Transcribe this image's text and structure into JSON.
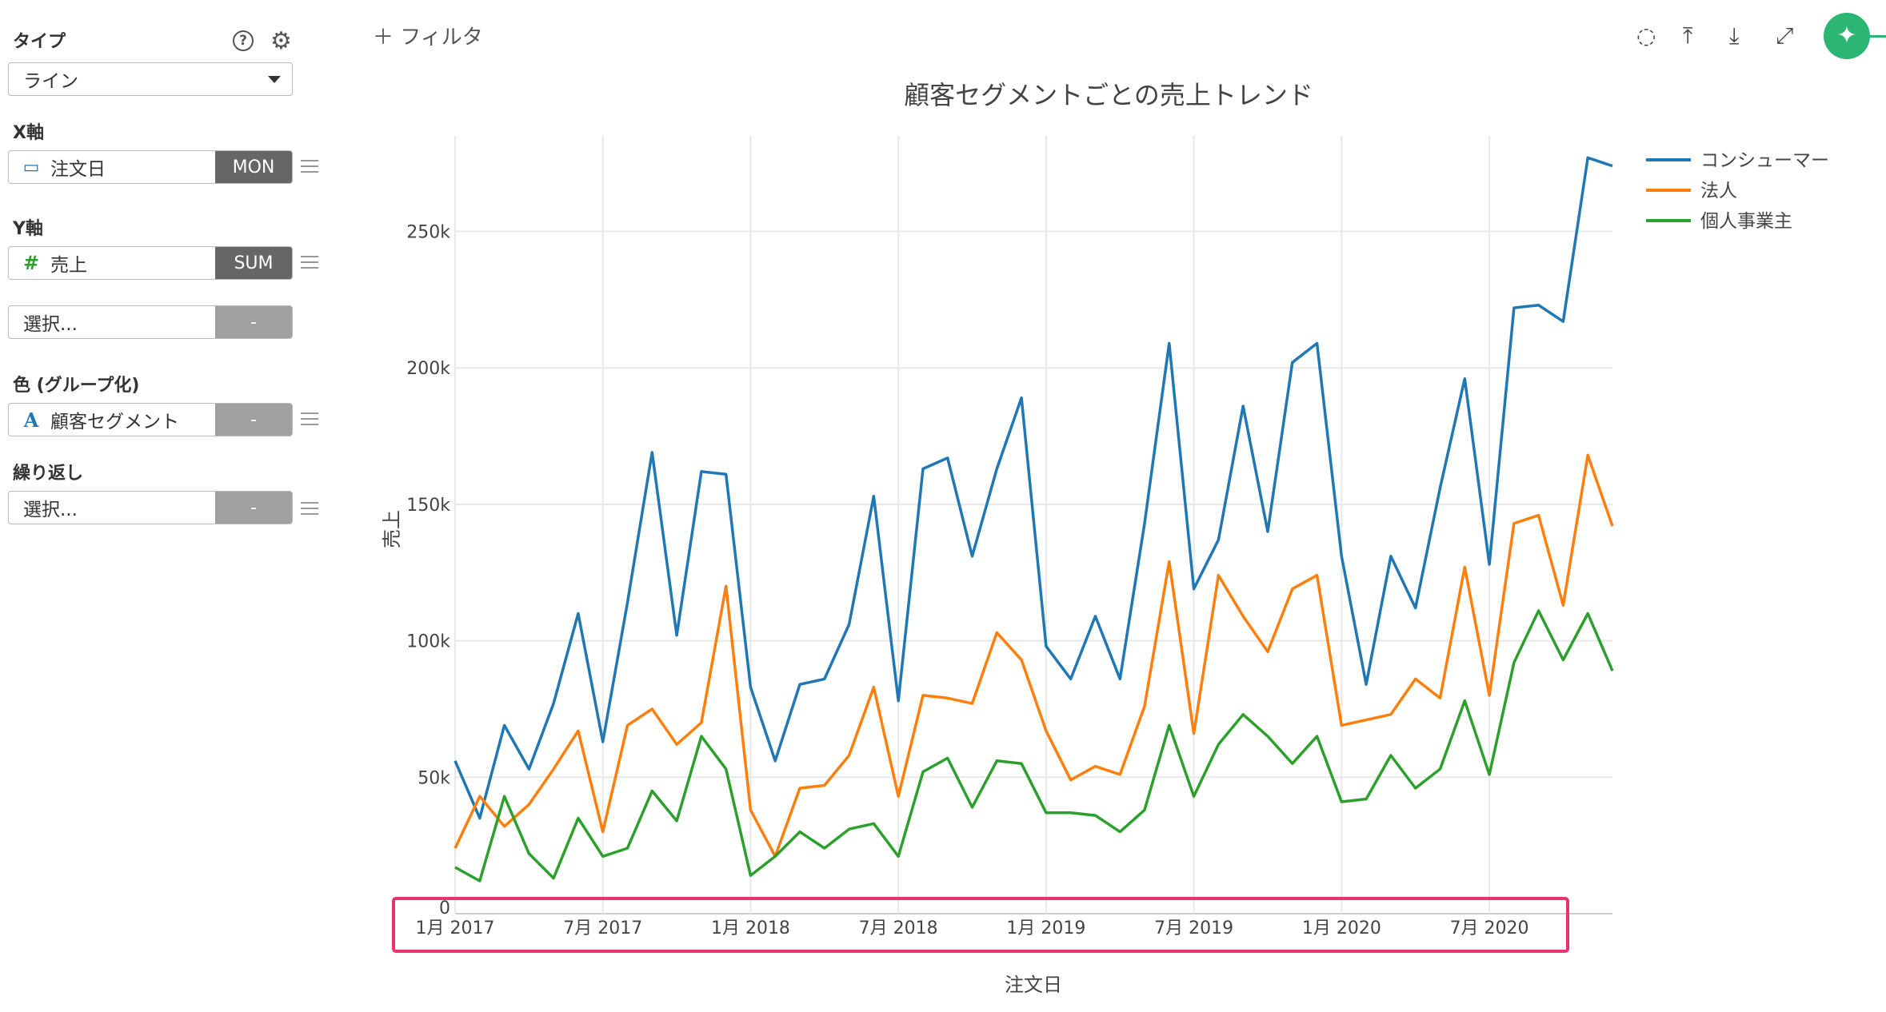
{
  "sidebar": {
    "type_label": "タイプ",
    "type_value": "ライン",
    "x_label": "X軸",
    "x_field": "注文日",
    "x_agg": "MON",
    "y_label": "Y軸",
    "y_field": "売上",
    "y_agg": "SUM",
    "y2_field": "選択...",
    "y2_agg": "-",
    "color_label": "色 (グループ化)",
    "color_field": "顧客セグメント",
    "color_agg": "-",
    "repeat_label": "繰り返し",
    "repeat_field": "選択...",
    "repeat_agg": "-",
    "icons": {
      "help": "help-icon",
      "settings": "gear-icon",
      "date": "calendar-icon",
      "number": "hash-icon",
      "text": "text-icon"
    }
  },
  "toolbar": {
    "filter_label": "フィルタ",
    "icons": [
      "comment-icon",
      "upload-icon",
      "download-icon",
      "expand-icon",
      "pin-icon"
    ],
    "pin_color": "#2bb673"
  },
  "highlight_color": "#e8336d",
  "chart_data": {
    "type": "line",
    "title": "顧客セグメントごとの売上トレンド",
    "xlabel": "注文日",
    "ylabel": "売上",
    "x_ticks": [
      "1月 2017",
      "7月 2017",
      "1月 2018",
      "7月 2018",
      "1月 2019",
      "7月 2019",
      "1月 2020",
      "7月 2020"
    ],
    "y_ticks": [
      "0",
      "50k",
      "100k",
      "150k",
      "200k",
      "250k"
    ],
    "ylim": [
      0,
      285000
    ],
    "x_start": "2017-01",
    "x_end": "2020-12",
    "grid": true,
    "legend_position": "top-right",
    "series": [
      {
        "name": "コンシューマー",
        "color": "#1f77b4",
        "values": [
          56000,
          35000,
          69000,
          53000,
          77000,
          110000,
          63000,
          114000,
          169000,
          102000,
          162000,
          161000,
          83000,
          56000,
          84000,
          86000,
          106000,
          153000,
          78000,
          163000,
          167000,
          131000,
          163000,
          189000,
          98000,
          86000,
          109000,
          86000,
          143000,
          209000,
          119000,
          137000,
          186000,
          140000,
          202000,
          209000,
          131000,
          84000,
          131000,
          112000,
          156000,
          196000,
          128000,
          222000,
          223000,
          217000,
          277000,
          274000
        ]
      },
      {
        "name": "法人",
        "color": "#ff7f0e",
        "values": [
          24000,
          43000,
          32000,
          40000,
          53000,
          67000,
          30000,
          69000,
          75000,
          62000,
          70000,
          120000,
          38000,
          21000,
          46000,
          47000,
          58000,
          83000,
          43000,
          80000,
          79000,
          77000,
          103000,
          93000,
          67000,
          49000,
          54000,
          51000,
          76000,
          129000,
          66000,
          124000,
          109000,
          96000,
          119000,
          124000,
          69000,
          71000,
          73000,
          86000,
          79000,
          127000,
          80000,
          143000,
          146000,
          113000,
          168000,
          142000
        ]
      },
      {
        "name": "個人事業主",
        "color": "#2ca02c",
        "values": [
          17000,
          12000,
          43000,
          22000,
          13000,
          35000,
          21000,
          24000,
          45000,
          34000,
          65000,
          53000,
          14000,
          21000,
          30000,
          24000,
          31000,
          33000,
          21000,
          52000,
          57000,
          39000,
          56000,
          55000,
          37000,
          37000,
          36000,
          30000,
          38000,
          69000,
          43000,
          62000,
          73000,
          65000,
          55000,
          65000,
          41000,
          42000,
          58000,
          46000,
          53000,
          78000,
          51000,
          92000,
          111000,
          93000,
          110000,
          89000
        ]
      }
    ]
  }
}
